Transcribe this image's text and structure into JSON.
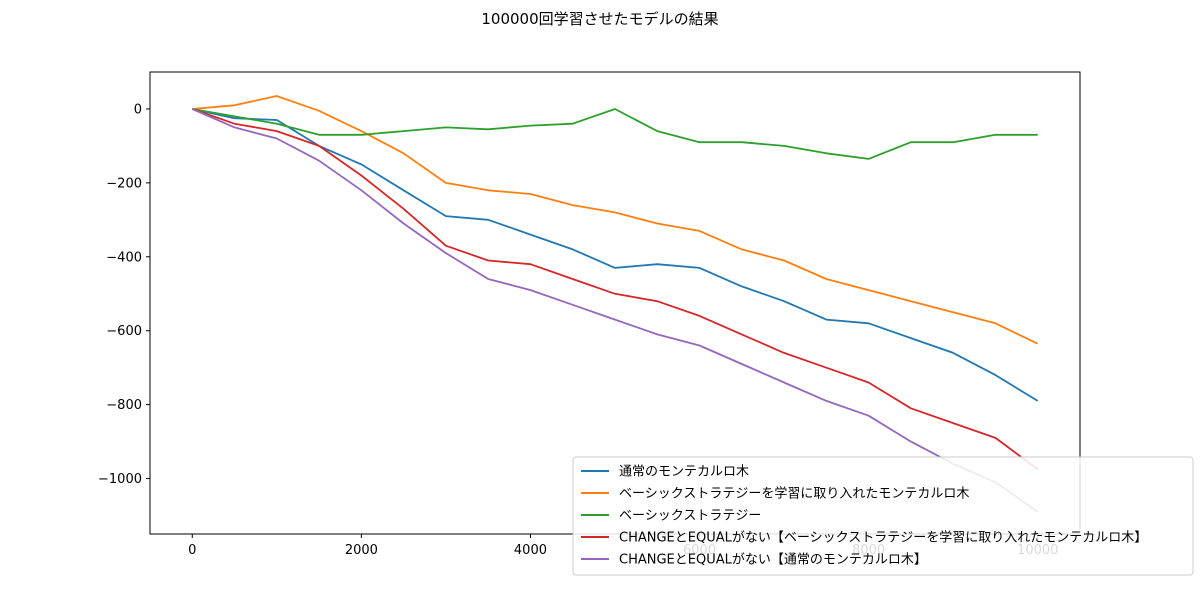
{
  "chart_data": {
    "type": "line",
    "title": "100000回学習させたモデルの結果",
    "xlabel": "",
    "ylabel": "",
    "xlim": [
      -500,
      10500
    ],
    "ylim": [
      -1150,
      100
    ],
    "xticks": [
      0,
      2000,
      4000,
      6000,
      8000,
      10000
    ],
    "xtick_labels": [
      "0",
      "2000",
      "4000",
      "6000",
      "8000",
      "10000"
    ],
    "yticks": [
      0,
      -200,
      -400,
      -600,
      -800,
      -1000
    ],
    "ytick_labels": [
      "0",
      "−200",
      "−400",
      "−600",
      "−800",
      "−1000"
    ],
    "grid": false,
    "legend_position": "lower-right",
    "series": [
      {
        "name": "通常のモンテカルロ木",
        "color": "#1f77b4",
        "x": [
          0,
          500,
          1000,
          1500,
          2000,
          2500,
          3000,
          3500,
          4000,
          4500,
          5000,
          5500,
          6000,
          6500,
          7000,
          7500,
          8000,
          8500,
          9000,
          9500,
          10000
        ],
        "values": [
          0,
          -25,
          -30,
          -100,
          -150,
          -220,
          -290,
          -300,
          -340,
          -380,
          -430,
          -420,
          -430,
          -480,
          -520,
          -570,
          -580,
          -620,
          -660,
          -720,
          -790
        ]
      },
      {
        "name": "ベーシックストラテジーを学習に取り入れたモンテカルロ木",
        "color": "#ff7f0e",
        "x": [
          0,
          500,
          1000,
          1500,
          2000,
          2500,
          3000,
          3500,
          4000,
          4500,
          5000,
          5500,
          6000,
          6500,
          7000,
          7500,
          8000,
          8500,
          9000,
          9500,
          10000
        ],
        "values": [
          0,
          10,
          35,
          -5,
          -60,
          -120,
          -200,
          -220,
          -230,
          -260,
          -280,
          -310,
          -330,
          -380,
          -410,
          -460,
          -490,
          -520,
          -550,
          -580,
          -635
        ]
      },
      {
        "name": "ベーシックストラテジー",
        "color": "#2ca02c",
        "x": [
          0,
          500,
          1000,
          1500,
          2000,
          2500,
          3000,
          3500,
          4000,
          4500,
          5000,
          5500,
          6000,
          6500,
          7000,
          7500,
          8000,
          8500,
          9000,
          9500,
          10000
        ],
        "values": [
          0,
          -20,
          -40,
          -70,
          -70,
          -60,
          -50,
          -55,
          -45,
          -40,
          0,
          -60,
          -90,
          -90,
          -100,
          -120,
          -135,
          -90,
          -90,
          -70,
          -70
        ]
      },
      {
        "name": "CHANGEとEQUALがない【ベーシックストラテジーを学習に取り入れたモンテカルロ木】",
        "color": "#d62728",
        "x": [
          0,
          500,
          1000,
          1500,
          2000,
          2500,
          3000,
          3500,
          4000,
          4500,
          5000,
          5500,
          6000,
          6500,
          7000,
          7500,
          8000,
          8500,
          9000,
          9500,
          10000
        ],
        "values": [
          0,
          -40,
          -60,
          -100,
          -180,
          -270,
          -370,
          -410,
          -420,
          -460,
          -500,
          -520,
          -560,
          -610,
          -660,
          -700,
          -740,
          -810,
          -850,
          -890,
          -975
        ]
      },
      {
        "name": "CHANGEとEQUALがない【通常のモンテカルロ木】",
        "color": "#9467bd",
        "x": [
          0,
          500,
          1000,
          1500,
          2000,
          2500,
          3000,
          3500,
          4000,
          4500,
          5000,
          5500,
          6000,
          6500,
          7000,
          7500,
          8000,
          8500,
          9000,
          9500,
          10000
        ],
        "values": [
          0,
          -50,
          -80,
          -140,
          -220,
          -310,
          -390,
          -460,
          -490,
          -530,
          -570,
          -610,
          -640,
          -690,
          -740,
          -790,
          -830,
          -900,
          -960,
          -1010,
          -1090
        ]
      }
    ]
  }
}
